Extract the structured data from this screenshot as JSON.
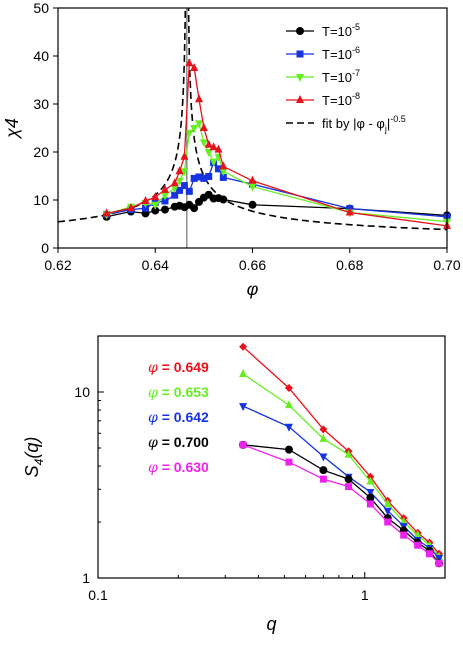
{
  "chart_data": [
    {
      "type": "line",
      "xlabel": "φ",
      "ylabel": "χ4",
      "xlim": [
        0.62,
        0.7
      ],
      "ylim": [
        0,
        50
      ],
      "xticks": [
        "0.62",
        "0.64",
        "0.66",
        "0.68",
        "0.70"
      ],
      "yticks": [
        "0",
        "10",
        "20",
        "30",
        "40",
        "50"
      ],
      "x_tick_values": [
        0.62,
        0.64,
        0.66,
        0.68,
        0.7
      ],
      "y_tick_values": [
        0,
        10,
        20,
        30,
        40,
        50
      ],
      "legend_position": "top-right",
      "vline_x": 0.6465,
      "series": [
        {
          "name": "T=10^-5",
          "label_base": "T=10",
          "label_exp": "-5",
          "color": "#000000",
          "marker": "circle",
          "x": [
            0.63,
            0.635,
            0.638,
            0.64,
            0.642,
            0.644,
            0.645,
            0.646,
            0.647,
            0.648,
            0.649,
            0.65,
            0.651,
            0.652,
            0.653,
            0.654,
            0.66,
            0.68,
            0.7
          ],
          "y": [
            6.5,
            7.6,
            7.2,
            7.8,
            8.0,
            8.6,
            8.8,
            8.5,
            9.0,
            8.3,
            9.6,
            10.5,
            11.1,
            10.3,
            10.4,
            10.1,
            9.0,
            8.2,
            6.8
          ]
        },
        {
          "name": "T=10^-6",
          "label_base": "T=10",
          "label_exp": "-6",
          "color": "#1533e0",
          "marker": "square",
          "x": [
            0.63,
            0.635,
            0.638,
            0.64,
            0.642,
            0.644,
            0.645,
            0.646,
            0.647,
            0.648,
            0.649,
            0.65,
            0.651,
            0.652,
            0.653,
            0.654,
            0.66,
            0.68,
            0.7
          ],
          "y": [
            7.0,
            8.0,
            8.3,
            9.5,
            9.8,
            11.0,
            12.0,
            13.0,
            11.8,
            14.5,
            14.8,
            14.5,
            14.9,
            17.8,
            16.5,
            14.7,
            13.3,
            8.2,
            6.5
          ]
        },
        {
          "name": "T=10^-7",
          "label_base": "T=10",
          "label_exp": "-7",
          "color": "#66ee22",
          "marker": "triangle-down",
          "x": [
            0.63,
            0.635,
            0.638,
            0.64,
            0.642,
            0.644,
            0.645,
            0.646,
            0.647,
            0.648,
            0.649,
            0.65,
            0.651,
            0.652,
            0.653,
            0.654,
            0.66,
            0.68,
            0.7
          ],
          "y": [
            7.0,
            8.6,
            9.4,
            9.0,
            11.0,
            12.5,
            14.0,
            16.0,
            24.0,
            25.0,
            26.0,
            22.0,
            20.0,
            18.0,
            19.0,
            16.0,
            12.8,
            7.4,
            5.5
          ]
        },
        {
          "name": "T=10^-8",
          "label_base": "T=10",
          "label_exp": "-8",
          "color": "#e8101a",
          "marker": "triangle-up",
          "x": [
            0.63,
            0.635,
            0.638,
            0.64,
            0.642,
            0.644,
            0.645,
            0.646,
            0.647,
            0.648,
            0.649,
            0.65,
            0.651,
            0.652,
            0.653,
            0.654,
            0.66,
            0.68,
            0.7
          ],
          "y": [
            7.2,
            8.3,
            9.8,
            10.6,
            12.1,
            13.5,
            16.0,
            19.0,
            38.5,
            37.5,
            31.0,
            25.0,
            21.5,
            21.0,
            20.5,
            17.0,
            14.0,
            7.4,
            4.6
          ]
        }
      ],
      "fit": {
        "name": "fit by |φ - φj|^-0.5",
        "label_main": "fit by |φ - φ",
        "label_sub": "j",
        "label_end": "|",
        "label_exp": "-0.5",
        "color": "#000000",
        "style": "dashed"
      }
    },
    {
      "type": "line",
      "xlabel": "q",
      "ylabel_main": "S",
      "ylabel_sub": "4",
      "ylabel_end": "(q)",
      "xscale": "log",
      "yscale": "log",
      "xlim": [
        0.1,
        2.0
      ],
      "ylim": [
        1,
        20
      ],
      "xticks": [
        "0.1",
        "1"
      ],
      "yticks": [
        "1",
        "10"
      ],
      "x_tick_values": [
        0.1,
        1
      ],
      "y_tick_values": [
        1,
        10
      ],
      "series": [
        {
          "name": "φ = 0.649",
          "phi_symbol": "φ",
          "phi_value": "= 0.649",
          "color": "#e8101a",
          "marker": "diamond",
          "x": [
            0.35,
            0.52,
            0.7,
            0.87,
            1.05,
            1.22,
            1.4,
            1.58,
            1.75,
            1.9
          ],
          "y": [
            17.5,
            10.5,
            6.3,
            4.8,
            3.5,
            2.6,
            2.1,
            1.75,
            1.55,
            1.35
          ]
        },
        {
          "name": "φ = 0.653",
          "phi_symbol": "φ",
          "phi_value": "= 0.653",
          "color": "#66ee22",
          "marker": "triangle-up",
          "x": [
            0.35,
            0.52,
            0.7,
            0.87,
            1.05,
            1.22,
            1.4,
            1.58,
            1.75,
            1.9
          ],
          "y": [
            12.5,
            8.5,
            5.6,
            4.6,
            3.3,
            2.5,
            2.0,
            1.7,
            1.5,
            1.3
          ]
        },
        {
          "name": "φ = 0.642",
          "phi_symbol": "φ",
          "phi_value": "= 0.642",
          "color": "#1533e0",
          "marker": "triangle-down",
          "x": [
            0.35,
            0.52,
            0.7,
            0.87,
            1.05,
            1.22,
            1.4,
            1.58,
            1.75,
            1.9
          ],
          "y": [
            8.4,
            6.5,
            4.5,
            3.5,
            2.9,
            2.3,
            1.9,
            1.6,
            1.45,
            1.28
          ]
        },
        {
          "name": "φ = 0.700",
          "phi_symbol": "φ",
          "phi_value": "= 0.700",
          "color": "#000000",
          "marker": "circle",
          "x": [
            0.35,
            0.52,
            0.7,
            0.87,
            1.05,
            1.22,
            1.4,
            1.58,
            1.75,
            1.9
          ],
          "y": [
            5.2,
            4.9,
            3.8,
            3.4,
            2.7,
            2.1,
            1.8,
            1.55,
            1.4,
            1.2
          ]
        },
        {
          "name": "φ = 0.630",
          "phi_symbol": "φ",
          "phi_value": "= 0.630",
          "color": "#ee22ee",
          "marker": "square",
          "x": [
            0.35,
            0.52,
            0.7,
            0.87,
            1.05,
            1.22,
            1.4,
            1.58,
            1.75,
            1.9
          ],
          "y": [
            5.2,
            4.2,
            3.4,
            3.1,
            2.5,
            2.0,
            1.7,
            1.5,
            1.35,
            1.2
          ]
        }
      ]
    }
  ]
}
